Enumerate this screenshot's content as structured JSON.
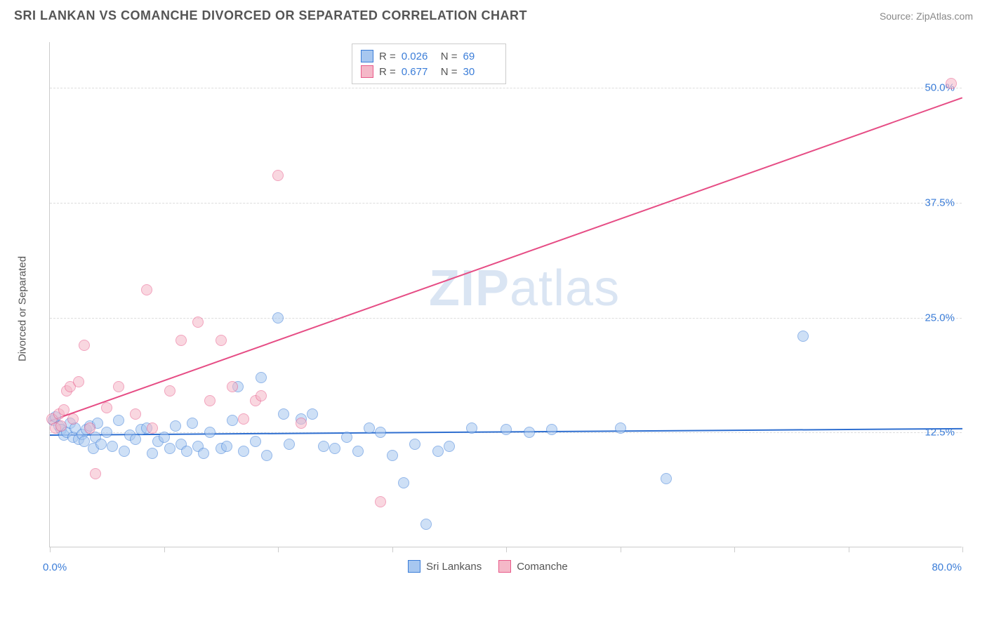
{
  "header": {
    "title": "SRI LANKAN VS COMANCHE DIVORCED OR SEPARATED CORRELATION CHART",
    "source": "Source: ZipAtlas.com"
  },
  "chart": {
    "type": "scatter",
    "y_axis_label": "Divorced or Separated",
    "xlim": [
      0,
      80
    ],
    "ylim": [
      0,
      55
    ],
    "x_tick_positions": [
      0,
      10,
      20,
      30,
      40,
      50,
      60,
      70,
      80
    ],
    "y_ticks": [
      {
        "value": 12.5,
        "label": "12.5%"
      },
      {
        "value": 25.0,
        "label": "25.0%"
      },
      {
        "value": 37.5,
        "label": "37.5%"
      },
      {
        "value": 50.0,
        "label": "50.0%"
      }
    ],
    "x_axis_min_label": "0.0%",
    "x_axis_max_label": "80.0%",
    "background_color": "#ffffff",
    "grid_color": "#dddddd",
    "axis_color": "#cccccc",
    "tick_label_color": "#3b7dd8",
    "marker_radius": 8,
    "marker_opacity": 0.55,
    "stats_box": {
      "rows": [
        {
          "swatch_fill": "#a7c7f0",
          "swatch_border": "#3b7dd8",
          "r_label": "R =",
          "r_value": "0.026",
          "n_label": "N =",
          "n_value": "69"
        },
        {
          "swatch_fill": "#f5b8c8",
          "swatch_border": "#e85a8a",
          "r_label": "R =",
          "r_value": "0.677",
          "n_label": "N =",
          "n_value": "30"
        }
      ]
    },
    "bottom_legend": [
      {
        "swatch_fill": "#a7c7f0",
        "swatch_border": "#3b7dd8",
        "label": "Sri Lankans"
      },
      {
        "swatch_fill": "#f5b8c8",
        "swatch_border": "#e85a8a",
        "label": "Comanche"
      }
    ],
    "watermark": {
      "part1": "ZIP",
      "part2": "atlas"
    },
    "series": [
      {
        "name": "Sri Lankans",
        "color_fill": "#a7c7f0",
        "color_border": "#3b7dd8",
        "trend": {
          "y_at_x0": 12.3,
          "y_at_xmax": 13.0,
          "color": "#2f6fd0",
          "width": 2
        },
        "points": [
          [
            0.3,
            13.8
          ],
          [
            0.5,
            14.2
          ],
          [
            0.8,
            13.2
          ],
          [
            1.0,
            12.8
          ],
          [
            1.2,
            12.2
          ],
          [
            1.5,
            12.5
          ],
          [
            1.8,
            13.5
          ],
          [
            2.0,
            12.0
          ],
          [
            2.2,
            13.0
          ],
          [
            2.5,
            11.8
          ],
          [
            2.8,
            12.3
          ],
          [
            3.0,
            11.5
          ],
          [
            3.2,
            12.8
          ],
          [
            3.5,
            13.2
          ],
          [
            3.8,
            10.8
          ],
          [
            4.0,
            12.0
          ],
          [
            4.2,
            13.5
          ],
          [
            4.5,
            11.2
          ],
          [
            5.0,
            12.5
          ],
          [
            5.5,
            11.0
          ],
          [
            6.0,
            13.8
          ],
          [
            6.5,
            10.5
          ],
          [
            7.0,
            12.2
          ],
          [
            7.5,
            11.8
          ],
          [
            8.0,
            12.8
          ],
          [
            8.5,
            13.0
          ],
          [
            9.0,
            10.2
          ],
          [
            9.5,
            11.5
          ],
          [
            10.0,
            12.0
          ],
          [
            10.5,
            10.8
          ],
          [
            11.0,
            13.2
          ],
          [
            11.5,
            11.2
          ],
          [
            12.0,
            10.5
          ],
          [
            12.5,
            13.5
          ],
          [
            13.0,
            11.0
          ],
          [
            13.5,
            10.2
          ],
          [
            14.0,
            12.5
          ],
          [
            15.0,
            10.8
          ],
          [
            15.5,
            11.0
          ],
          [
            16.0,
            13.8
          ],
          [
            16.5,
            17.5
          ],
          [
            17.0,
            10.5
          ],
          [
            18.0,
            11.5
          ],
          [
            18.5,
            18.5
          ],
          [
            19.0,
            10.0
          ],
          [
            20.0,
            25.0
          ],
          [
            20.5,
            14.5
          ],
          [
            21.0,
            11.2
          ],
          [
            22.0,
            14.0
          ],
          [
            23.0,
            14.5
          ],
          [
            24.0,
            11.0
          ],
          [
            25.0,
            10.8
          ],
          [
            26.0,
            12.0
          ],
          [
            27.0,
            10.5
          ],
          [
            28.0,
            13.0
          ],
          [
            29.0,
            12.5
          ],
          [
            30.0,
            10.0
          ],
          [
            31.0,
            7.0
          ],
          [
            32.0,
            11.2
          ],
          [
            33.0,
            2.5
          ],
          [
            34.0,
            10.5
          ],
          [
            35.0,
            11.0
          ],
          [
            37.0,
            13.0
          ],
          [
            40.0,
            12.8
          ],
          [
            42.0,
            12.5
          ],
          [
            44.0,
            12.8
          ],
          [
            50.0,
            13.0
          ],
          [
            54.0,
            7.5
          ],
          [
            66.0,
            23.0
          ]
        ]
      },
      {
        "name": "Comanche",
        "color_fill": "#f5b8c8",
        "color_border": "#e85a8a",
        "trend": {
          "y_at_x0": 13.8,
          "y_at_xmax": 49.0,
          "color": "#e64d85",
          "width": 2
        },
        "points": [
          [
            0.2,
            14.0
          ],
          [
            0.5,
            13.0
          ],
          [
            0.8,
            14.5
          ],
          [
            1.0,
            13.2
          ],
          [
            1.2,
            15.0
          ],
          [
            1.5,
            17.0
          ],
          [
            1.8,
            17.5
          ],
          [
            2.0,
            14.0
          ],
          [
            2.5,
            18.0
          ],
          [
            3.0,
            22.0
          ],
          [
            3.5,
            13.0
          ],
          [
            4.0,
            8.0
          ],
          [
            5.0,
            15.2
          ],
          [
            6.0,
            17.5
          ],
          [
            7.5,
            14.5
          ],
          [
            8.5,
            28.0
          ],
          [
            9.0,
            13.0
          ],
          [
            10.5,
            17.0
          ],
          [
            11.5,
            22.5
          ],
          [
            13.0,
            24.5
          ],
          [
            14.0,
            16.0
          ],
          [
            15.0,
            22.5
          ],
          [
            16.0,
            17.5
          ],
          [
            17.0,
            14.0
          ],
          [
            18.0,
            16.0
          ],
          [
            18.5,
            16.5
          ],
          [
            20.0,
            40.5
          ],
          [
            22.0,
            13.5
          ],
          [
            29.0,
            5.0
          ],
          [
            79.0,
            50.5
          ]
        ]
      }
    ]
  }
}
